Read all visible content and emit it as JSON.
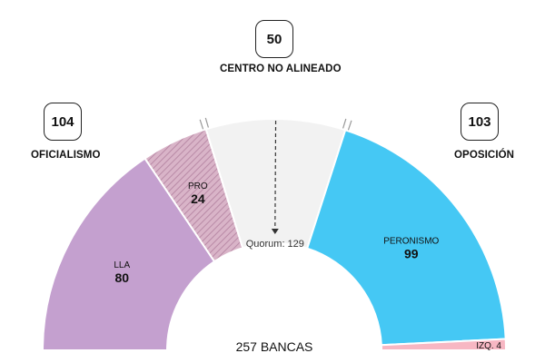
{
  "groups": {
    "center": {
      "label": "CENTRO NO ALINEADO",
      "total": "50"
    },
    "left": {
      "label": "OFICIALISMO",
      "total": "104"
    },
    "right": {
      "label": "OPOSICIÓN",
      "total": "103"
    }
  },
  "colors": {
    "LLA": "#c4a0cf",
    "PRO": "#d9b4c8",
    "PRO_hatch": "#b98aa6",
    "center": "#f2f2f2",
    "PERONISMO": "#45c8f4",
    "IZQ": "#f7b7c3",
    "divider": "#ffffff",
    "text": "#111111"
  },
  "chart_data": {
    "type": "pie",
    "subtype": "semicircle-parliament",
    "total_label": "257 BANCAS",
    "total": 257,
    "quorum_label": "Quorum: 129",
    "quorum": 129,
    "slices": [
      {
        "name": "LLA",
        "value": 80,
        "label": "LLA",
        "value_label": "80"
      },
      {
        "name": "PRO",
        "value": 24,
        "label": "PRO",
        "value_label": "24"
      },
      {
        "name": "center",
        "value": 50,
        "label": "",
        "value_label": ""
      },
      {
        "name": "PERONISMO",
        "value": 99,
        "label": "PERONISMO",
        "value_label": "99"
      },
      {
        "name": "IZQ",
        "value": 4,
        "label": "IZQ. 4",
        "value_label": ""
      }
    ]
  }
}
